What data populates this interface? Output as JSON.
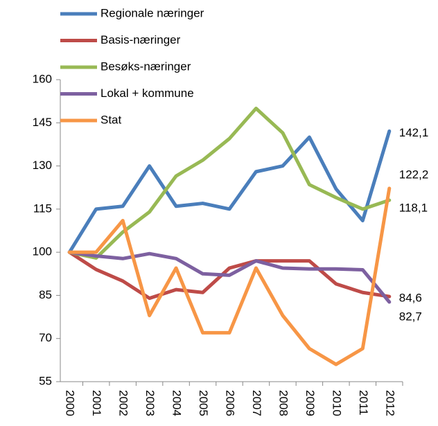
{
  "chart_data": {
    "type": "line",
    "categories": [
      "2000",
      "2001",
      "2002",
      "2003",
      "2004",
      "2005",
      "2006",
      "2007",
      "2008",
      "2009",
      "2010",
      "2011",
      "2012"
    ],
    "series": [
      {
        "name": "Regionale næringer",
        "color": "#4a7ebb",
        "values": [
          100,
          115,
          116,
          130,
          116,
          117,
          115,
          128,
          130,
          140,
          122,
          111,
          142.1
        ],
        "value_labels": [
          null,
          null,
          null,
          null,
          null,
          null,
          null,
          null,
          null,
          null,
          null,
          null,
          "142,1"
        ]
      },
      {
        "name": "Basis-næringer",
        "color": "#be4b48",
        "values": [
          100,
          94,
          90,
          84,
          87,
          86,
          94.5,
          97,
          97,
          97,
          89,
          86,
          84.6
        ],
        "value_labels": [
          null,
          null,
          null,
          null,
          null,
          null,
          null,
          null,
          null,
          null,
          null,
          null,
          "84,6"
        ]
      },
      {
        "name": "Besøks-næringer",
        "color": "#98b954",
        "values": [
          100,
          98,
          107,
          114,
          126.5,
          132,
          139.5,
          150,
          141.5,
          123.5,
          119,
          115,
          118.1
        ],
        "value_labels": [
          null,
          null,
          null,
          null,
          null,
          null,
          null,
          null,
          null,
          null,
          null,
          null,
          "118,1"
        ]
      },
      {
        "name": "Lokal + kommune",
        "color": "#7d60a0",
        "values": [
          100,
          98.7,
          97.8,
          99.5,
          97.8,
          92.5,
          92,
          97,
          94.5,
          94.2,
          94.2,
          93.9,
          82.7
        ],
        "value_labels": [
          null,
          null,
          null,
          null,
          null,
          null,
          null,
          null,
          null,
          null,
          null,
          null,
          "82,7"
        ]
      },
      {
        "name": "Stat",
        "color": "#f79646",
        "values": [
          100,
          100,
          111,
          78,
          94.5,
          72,
          72,
          94.5,
          78,
          66.5,
          61,
          66.5,
          122.2
        ],
        "value_labels": [
          null,
          null,
          null,
          null,
          null,
          null,
          null,
          null,
          null,
          null,
          null,
          null,
          "122,2"
        ]
      }
    ],
    "ylim": [
      55,
      160
    ],
    "yticks": [
      55,
      70,
      85,
      100,
      115,
      130,
      145,
      160
    ],
    "grid": false
  }
}
